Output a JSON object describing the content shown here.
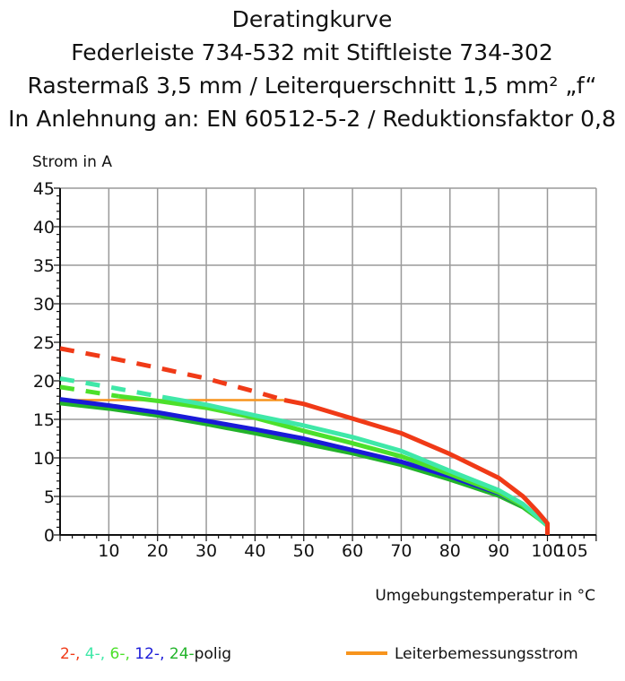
{
  "chart_data": {
    "type": "line",
    "title": "Deratingkurve",
    "subtitles": [
      "Federleiste 734-532 mit Stiftleiste 734-302",
      "Rastermaß 3,5 mm / Leiterquerschnitt 1,5 mm² „f“",
      "In Anlehnung an: EN 60512-5-2 / Reduktionsfaktor 0,8"
    ],
    "xlabel": "Umgebungstemperatur in °C",
    "ylabel": "Strom in A",
    "xlim": [
      0,
      110
    ],
    "ylim": [
      0,
      45
    ],
    "xticks": [
      10,
      20,
      30,
      40,
      50,
      60,
      70,
      80,
      90,
      100,
      105
    ],
    "yticks": [
      0,
      5,
      10,
      15,
      20,
      25,
      30,
      35,
      40,
      45
    ],
    "grid": true,
    "series": [
      {
        "name": "2-",
        "color": "#f03a17",
        "dashed_until": 46,
        "x": [
          0,
          10,
          20,
          30,
          40,
          46,
          50,
          60,
          70,
          80,
          90,
          95,
          98,
          100,
          100
        ],
        "y": [
          24.2,
          23.0,
          21.7,
          20.3,
          18.6,
          17.5,
          17.0,
          15.1,
          13.2,
          10.5,
          7.4,
          5.0,
          3.0,
          1.5,
          0
        ]
      },
      {
        "name": "4-",
        "color": "#3fe8a8",
        "dashed_until": 21,
        "x": [
          0,
          10,
          21,
          30,
          40,
          50,
          60,
          70,
          80,
          90,
          95,
          100
        ],
        "y": [
          20.3,
          19.2,
          17.9,
          16.9,
          15.5,
          14.2,
          12.7,
          10.9,
          8.3,
          5.8,
          4.0,
          1.2
        ]
      },
      {
        "name": "6-",
        "color": "#4ce02a",
        "dashed_until": 12,
        "x": [
          0,
          12,
          20,
          30,
          40,
          50,
          60,
          70,
          80,
          90,
          95,
          100
        ],
        "y": [
          19.2,
          18.0,
          17.4,
          16.5,
          15.2,
          13.5,
          11.9,
          10.2,
          7.9,
          5.5,
          3.8,
          1.2
        ]
      },
      {
        "name": "12-",
        "color": "#1a1ad8",
        "dashed_until": 0,
        "x": [
          0,
          10,
          20,
          30,
          40,
          50,
          60,
          70,
          80,
          90,
          95,
          100
        ],
        "y": [
          17.6,
          16.8,
          15.9,
          14.8,
          13.7,
          12.5,
          11.0,
          9.5,
          7.6,
          5.4,
          3.8,
          1.4
        ]
      },
      {
        "name": "24-",
        "color": "#22b32a",
        "dashed_until": 0,
        "x": [
          0,
          10,
          20,
          30,
          40,
          50,
          60,
          70,
          80,
          90,
          95,
          100
        ],
        "y": [
          17.1,
          16.4,
          15.5,
          14.4,
          13.2,
          11.9,
          10.6,
          9.1,
          7.2,
          5.1,
          3.6,
          1.3
        ]
      }
    ],
    "reference_line": {
      "name": "Leiterbemessungsstrom",
      "color": "#f7941d",
      "x": [
        0,
        46
      ],
      "y": [
        17.5,
        17.5
      ]
    },
    "legend": {
      "placement": "bottom",
      "poles_suffix": "polig",
      "poles_items": [
        "2-,",
        "4-,",
        "6-,",
        "12-,",
        "24-"
      ]
    }
  }
}
